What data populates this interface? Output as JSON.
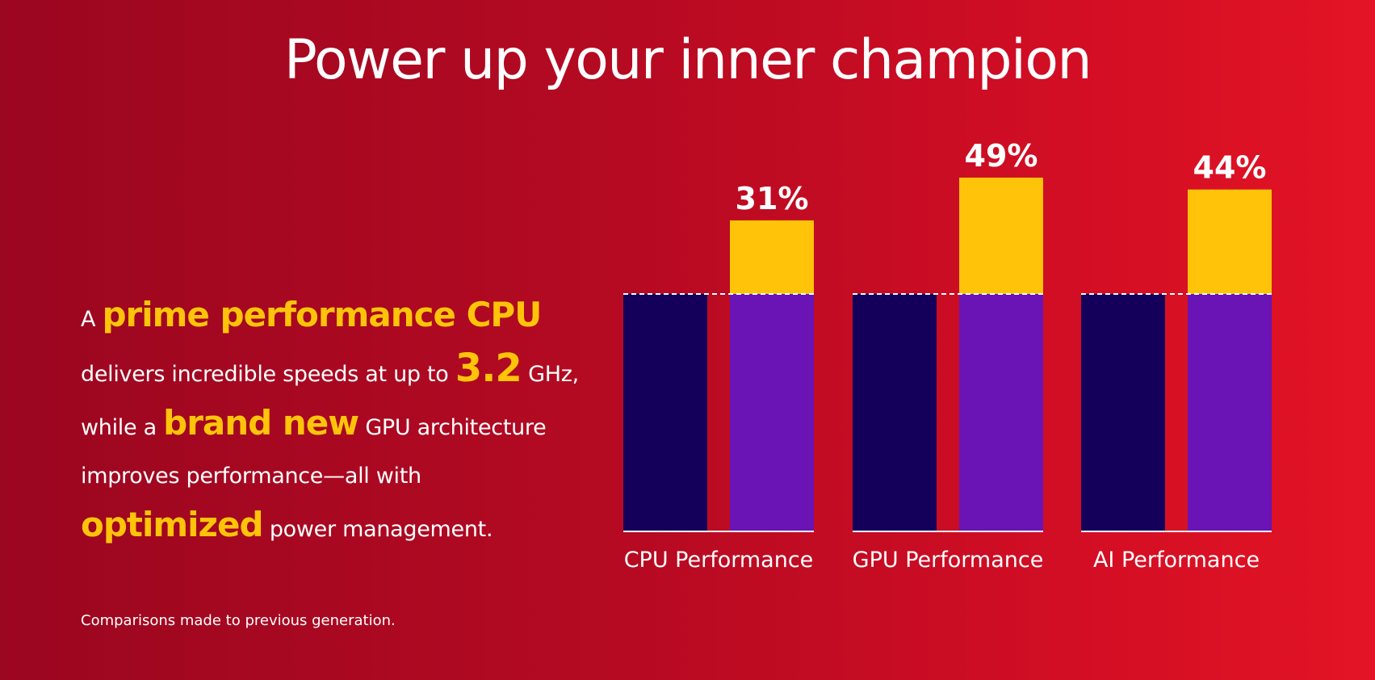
{
  "headline": "Power up your inner champion",
  "description": {
    "p1": "A ",
    "hl1": "prime performance CPU",
    "p2": " delivers incredible speeds at up to ",
    "hl2": "3.2",
    "p3": " GHz, while a ",
    "hl3": "brand new",
    "p4": " GPU architecture improves performance—all with ",
    "hl4": "optimized",
    "p5": " power management."
  },
  "footnote": "Comparisons made to previous generation.",
  "colors": {
    "background_start": "#9b0620",
    "background_end": "#e31425",
    "highlight": "#ffc40a",
    "previous_generation": "#14005a",
    "current_generation": "#6a14b6",
    "improvement": "#ffc40a"
  },
  "chart_data": {
    "type": "bar",
    "categories": [
      "CPU Performance",
      "GPU Performance",
      "AI Performance"
    ],
    "baseline_value": 100,
    "series": [
      {
        "values": [
          100,
          100,
          100
        ]
      },
      {
        "values": [
          131,
          149,
          144
        ]
      }
    ],
    "improvement_labels": [
      "31%",
      "49%",
      "44%"
    ],
    "improvement_values": [
      31,
      49,
      44
    ],
    "baseline_marker": "dashed line at previous-generation level",
    "ylim": [
      0,
      160
    ],
    "grid": false,
    "legend": "none"
  }
}
